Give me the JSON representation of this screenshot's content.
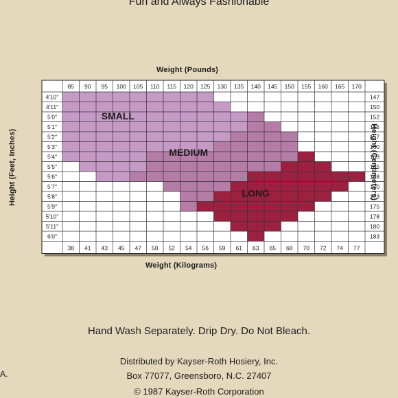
{
  "tagline": "Fun and Always Fashionable",
  "chart_data": {
    "type": "table",
    "top_axis_title": "Weight (Pounds)",
    "bottom_axis_title": "Weight (Kilograms)",
    "left_axis_title": "Height (Feet, Inches)",
    "right_axis_title": "Height (Centimeters)",
    "weight_lb": [
      "85",
      "90",
      "95",
      "100",
      "105",
      "110",
      "115",
      "120",
      "125",
      "130",
      "135",
      "140",
      "145",
      "150",
      "155",
      "160",
      "165",
      "170"
    ],
    "weight_kg": [
      "38",
      "41",
      "43",
      "45",
      "47",
      "50",
      "52",
      "54",
      "56",
      "59",
      "61",
      "63",
      "65",
      "68",
      "70",
      "72",
      "74",
      "77"
    ],
    "height_ft": [
      "4'10\"",
      "4'11\"",
      "5'0\"",
      "5'1\"",
      "5'2\"",
      "5'3\"",
      "5'4\"",
      "5'5\"",
      "5'6\"",
      "5'7\"",
      "5'8\"",
      "5'9\"",
      "5'10\"",
      "5'11\"",
      "6'0\""
    ],
    "height_cm": [
      "147",
      "150",
      "152",
      "155",
      "157",
      "160",
      "163",
      "165",
      "168",
      "170",
      "173",
      "175",
      "178",
      "180",
      "183"
    ],
    "sizes": [
      {
        "name": "SMALL",
        "color": "#c59ac6"
      },
      {
        "name": "MEDIUM",
        "color": "#b47ca7"
      },
      {
        "name": "LONG",
        "color": "#9c2140"
      }
    ],
    "size_regions": {
      "SMALL": [
        [
          0,
          0,
          8
        ],
        [
          1,
          0,
          9
        ],
        [
          2,
          0,
          10
        ],
        [
          3,
          0,
          10
        ],
        [
          4,
          0,
          9
        ],
        [
          5,
          0,
          8
        ],
        [
          6,
          0,
          4
        ],
        [
          7,
          1,
          4
        ],
        [
          8,
          2,
          3
        ]
      ],
      "MEDIUM": [
        [
          2,
          11,
          11
        ],
        [
          3,
          11,
          12
        ],
        [
          4,
          10,
          13
        ],
        [
          5,
          9,
          13
        ],
        [
          6,
          5,
          13
        ],
        [
          7,
          5,
          12
        ],
        [
          8,
          4,
          10
        ],
        [
          9,
          6,
          9
        ],
        [
          10,
          7,
          8
        ],
        [
          11,
          7,
          7
        ]
      ],
      "LONG": [
        [
          6,
          14,
          14
        ],
        [
          7,
          13,
          15
        ],
        [
          8,
          11,
          17
        ],
        [
          9,
          10,
          16
        ],
        [
          10,
          9,
          15
        ],
        [
          11,
          8,
          14
        ],
        [
          12,
          9,
          13
        ],
        [
          13,
          10,
          12
        ],
        [
          14,
          11,
          11
        ]
      ]
    }
  },
  "care_text": "Hand Wash Separately. Drip Dry. Do Not Bleach.",
  "distributor_line1": "Distributed by Kayser-Roth Hosiery, Inc.",
  "distributor_line2": "Box 77077, Greensboro, N.C. 27407",
  "copyright": "© 1987 Kayser-Roth Corporation",
  "edge_fragment": "A."
}
